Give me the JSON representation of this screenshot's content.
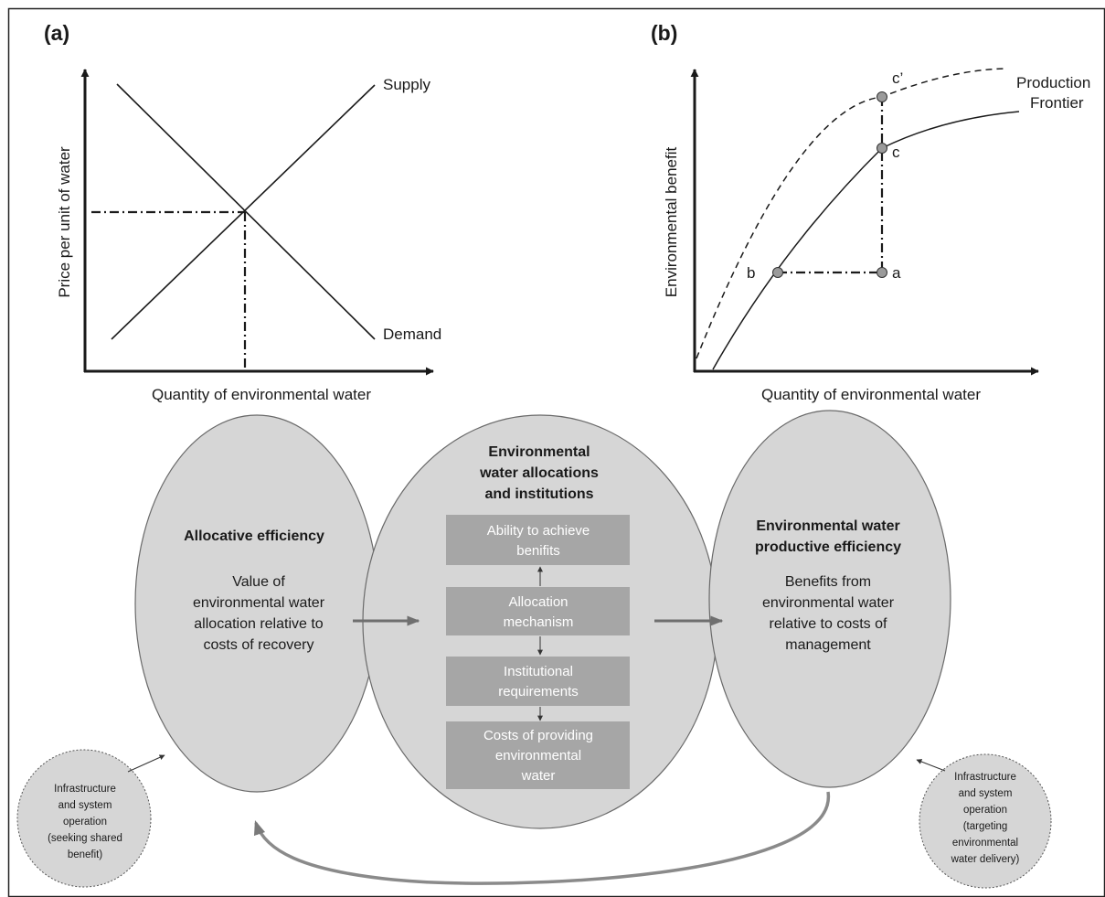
{
  "panel_a": {
    "label": "(a)",
    "ylabel": "Price per unit of water",
    "xlabel": "Quantity of environmental water",
    "supply_label": "Supply",
    "demand_label": "Demand"
  },
  "panel_b": {
    "label": "(b)",
    "ylabel": "Environmental benefit",
    "xlabel": "Quantity of environmental water",
    "frontier_label_line1": "Production",
    "frontier_label_line2": "Frontier",
    "points": {
      "a": "a",
      "b": "b",
      "c": "c",
      "c_prime": "c’"
    }
  },
  "diagram": {
    "left": {
      "title": "Allocative efficiency",
      "body": [
        "Value of",
        "environmental water",
        "allocation relative to",
        "costs of recovery"
      ]
    },
    "center": {
      "title": [
        "Environmental",
        "water allocations",
        "and institutions"
      ],
      "boxes": [
        [
          "Ability to achieve",
          "benifits"
        ],
        [
          "Allocation",
          "mechanism"
        ],
        [
          "Institutional",
          "requirements"
        ],
        [
          "Costs of providing",
          "environmental",
          "water"
        ]
      ]
    },
    "right": {
      "title": [
        "Environmental water",
        "productive efficiency"
      ],
      "body": [
        "Benefits from",
        "environmental water",
        "relative to costs of",
        "management"
      ]
    },
    "bottom_left": [
      "Infrastructure",
      "and system",
      "operation",
      "(seeking shared",
      "benefit)"
    ],
    "bottom_right": [
      "Infrastructure",
      "and system",
      "operation",
      "(targeting",
      "environmental",
      "water delivery)"
    ]
  },
  "colors": {
    "ellipse_fill": "#d6d6d6",
    "box_fill": "#a6a6a6",
    "arrow_gray": "#6f6f6f",
    "ink": "#1a1a1a"
  }
}
